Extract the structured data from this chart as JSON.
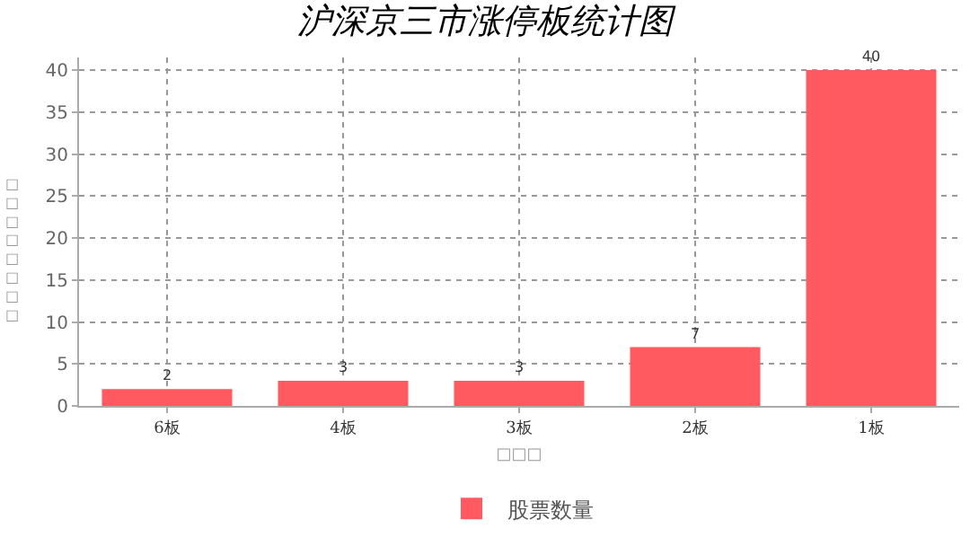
{
  "chart_data": {
    "type": "bar",
    "title": "沪深京三市涨停板统计图",
    "xlabel": "□□□",
    "ylabel": "□□□□□□□□",
    "categories": [
      "6板",
      "4板",
      "3板",
      "2板",
      "1板"
    ],
    "series": [
      {
        "name": "股票数量",
        "color": "#ff5a5f",
        "values": [
          2,
          3,
          3,
          7,
          40
        ]
      }
    ],
    "ylim": [
      0,
      41.5
    ],
    "yticks": [
      0,
      5,
      10,
      15,
      20,
      25,
      30,
      35,
      40
    ],
    "grid": true,
    "legend": "bottom",
    "data_labels": true
  }
}
